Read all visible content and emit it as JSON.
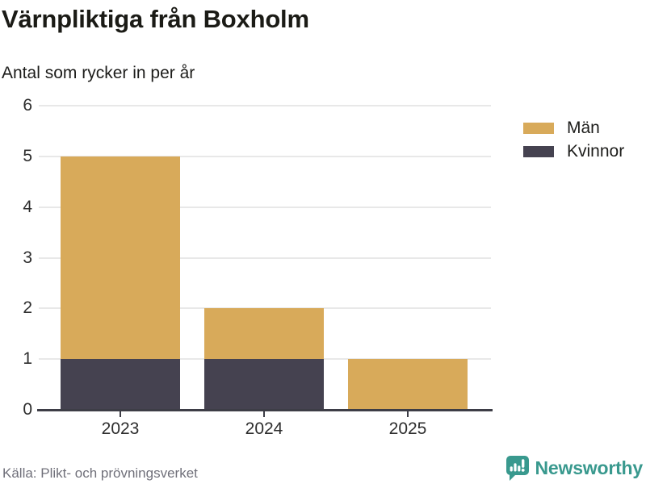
{
  "header": {
    "title": "Värnpliktiga från Boxholm",
    "subtitle": "Antal som rycker in per år"
  },
  "chart_data": {
    "type": "bar",
    "stacked": true,
    "title": "Värnpliktiga från Boxholm",
    "subtitle": "Antal som rycker in per år",
    "categories": [
      "2023",
      "2024",
      "2025"
    ],
    "series": [
      {
        "name": "Män",
        "key": "men",
        "color": "#d8aa5a",
        "values": [
          4,
          1,
          1
        ]
      },
      {
        "name": "Kvinnor",
        "key": "women",
        "color": "#454250",
        "values": [
          1,
          1,
          0
        ]
      }
    ],
    "stack_totals": [
      5,
      2,
      1
    ],
    "xlabel": "",
    "ylabel": "",
    "ylim": [
      0,
      6
    ],
    "yticks": [
      0,
      1,
      2,
      3,
      4,
      5,
      6
    ],
    "grid": true,
    "legend_position": "right",
    "stack_order_bottom_to_top": [
      "Kvinnor",
      "Män"
    ]
  },
  "footer": {
    "source": "Källa: Plikt- och prövningsverket",
    "brand": "Newsworthy"
  },
  "colors": {
    "men": "#d8aa5a",
    "women": "#454250",
    "grid": "#e8e8e8",
    "axis": "#3d3d46",
    "text": "#1d1d1b",
    "muted_text": "#70707a",
    "brand_teal": "#39998e"
  }
}
